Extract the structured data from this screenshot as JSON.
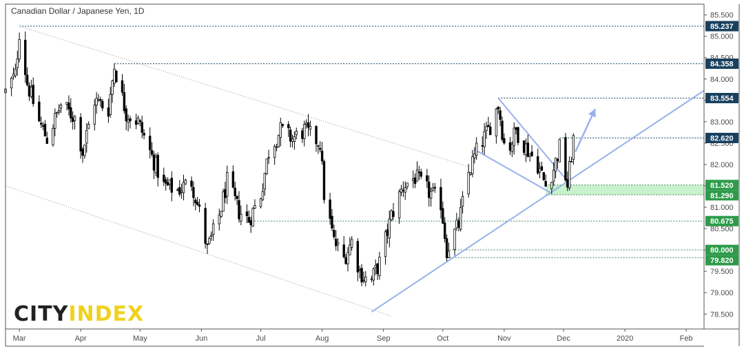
{
  "chart_data": {
    "type": "candlestick",
    "title": "Canadian Dollar / Japanese Yen, 1D",
    "xlabel": "",
    "ylabel": "",
    "ylim": [
      78.15,
      85.72
    ],
    "xlim": [
      "2019-02-22",
      "2020-02-10"
    ],
    "y_ticks": [
      "78.500",
      "79.000",
      "79.500",
      "80.000",
      "80.500",
      "81.000",
      "81.500",
      "82.000",
      "82.500",
      "83.000",
      "83.500",
      "84.000",
      "84.500",
      "85.000",
      "85.500"
    ],
    "x_ticks": [
      {
        "label": "Mar",
        "date": "2019-03-01"
      },
      {
        "label": "Apr",
        "date": "2019-04-01"
      },
      {
        "label": "May",
        "date": "2019-05-01"
      },
      {
        "label": "Jun",
        "date": "2019-06-01"
      },
      {
        "label": "Jul",
        "date": "2019-07-01"
      },
      {
        "label": "Aug",
        "date": "2019-08-01"
      },
      {
        "label": "Sep",
        "date": "2019-09-01"
      },
      {
        "label": "Oct",
        "date": "2019-10-01"
      },
      {
        "label": "Nov",
        "date": "2019-11-01"
      },
      {
        "label": "Dec",
        "date": "2019-12-01"
      },
      {
        "label": "2020",
        "date": "2020-01-01"
      },
      {
        "label": "Feb",
        "date": "2020-02-01"
      }
    ],
    "start_date": "2019-02-22",
    "close_path": [
      [
        "2019-02-22",
        83.7
      ],
      [
        "2019-02-27",
        84.1
      ],
      [
        "2019-03-01",
        85.1
      ],
      [
        "2019-03-05",
        83.9
      ],
      [
        "2019-03-11",
        83.0
      ],
      [
        "2019-03-15",
        82.6
      ],
      [
        "2019-03-22",
        83.4
      ],
      [
        "2019-03-29",
        83.1
      ],
      [
        "2019-04-02",
        82.3
      ],
      [
        "2019-04-08",
        83.5
      ],
      [
        "2019-04-15",
        83.3
      ],
      [
        "2019-04-18",
        84.3
      ],
      [
        "2019-04-24",
        83.2
      ],
      [
        "2019-04-30",
        83.0
      ],
      [
        "2019-05-06",
        82.3
      ],
      [
        "2019-05-13",
        81.5
      ],
      [
        "2019-05-20",
        81.4
      ],
      [
        "2019-05-27",
        81.6
      ],
      [
        "2019-06-01",
        80.7
      ],
      [
        "2019-06-04",
        80.0
      ],
      [
        "2019-06-10",
        80.8
      ],
      [
        "2019-06-14",
        81.6
      ],
      [
        "2019-06-20",
        80.9
      ],
      [
        "2019-06-25",
        80.7
      ],
      [
        "2019-07-01",
        81.3
      ],
      [
        "2019-07-05",
        82.3
      ],
      [
        "2019-07-11",
        82.8
      ],
      [
        "2019-07-17",
        82.6
      ],
      [
        "2019-07-23",
        82.8
      ],
      [
        "2019-07-31",
        82.5
      ],
      [
        "2019-08-02",
        81.3
      ],
      [
        "2019-08-07",
        80.2
      ],
      [
        "2019-08-12",
        79.8
      ],
      [
        "2019-08-16",
        80.2
      ],
      [
        "2019-08-20",
        79.5
      ],
      [
        "2019-08-25",
        79.2
      ],
      [
        "2019-08-26",
        79.3
      ],
      [
        "2019-08-30",
        79.7
      ],
      [
        "2019-09-05",
        80.8
      ],
      [
        "2019-09-11",
        81.5
      ],
      [
        "2019-09-17",
        81.7
      ],
      [
        "2019-09-23",
        81.4
      ],
      [
        "2019-09-30",
        81.1
      ],
      [
        "2019-10-03",
        80.0
      ],
      [
        "2019-10-09",
        80.6
      ],
      [
        "2019-10-14",
        81.8
      ],
      [
        "2019-10-18",
        82.3
      ],
      [
        "2019-10-24",
        82.8
      ],
      [
        "2019-10-29",
        83.4
      ],
      [
        "2019-11-02",
        82.2
      ],
      [
        "2019-11-07",
        82.8
      ],
      [
        "2019-11-12",
        82.4
      ],
      [
        "2019-11-18",
        82.0
      ],
      [
        "2019-11-22",
        81.5
      ],
      [
        "2019-11-26",
        81.9
      ],
      [
        "2019-11-29",
        82.4
      ],
      [
        "2019-12-03",
        81.5
      ],
      [
        "2019-12-06",
        82.6
      ]
    ],
    "levels": [
      {
        "value": 85.237,
        "label": "85.237",
        "start": "2019-03-01"
      },
      {
        "value": 84.358,
        "label": "84.358",
        "start": "2019-04-18"
      },
      {
        "value": 83.554,
        "label": "83.554",
        "start": "2019-10-29"
      },
      {
        "value": 82.62,
        "label": "82.620",
        "start": "2019-11-29"
      },
      {
        "value": 80.675,
        "label": "80.675",
        "start": "2019-06-25"
      },
      {
        "value": 80.0,
        "label": "80.000",
        "start": "2019-10-03"
      },
      {
        "value": 79.82,
        "label": "79.820",
        "start": "2019-10-03"
      }
    ],
    "support_zone": {
      "top": 81.52,
      "bottom": 81.29,
      "top_label": "81.520",
      "bottom_label": "81.290",
      "start": "2019-11-22"
    },
    "trendlines": [
      {
        "style": "dotted-gray",
        "from": [
          "2019-03-01",
          85.237
        ],
        "to": [
          "2019-10-14",
          81.95
        ]
      },
      {
        "style": "dotted-gray",
        "from": [
          "2019-02-22",
          81.5
        ],
        "to": [
          "2019-09-05",
          78.45
        ]
      },
      {
        "style": "solid-blue",
        "from": [
          "2019-08-26",
          78.55
        ],
        "to": [
          "2020-02-10",
          83.73
        ]
      },
      {
        "style": "solid-blue",
        "from": [
          "2019-10-17",
          82.35
        ],
        "to": [
          "2019-11-24",
          81.35
        ]
      },
      {
        "style": "solid-blue",
        "from": [
          "2019-10-29",
          83.554
        ],
        "to": [
          "2019-12-05",
          81.5
        ]
      }
    ],
    "projection_arrow": {
      "from": [
        "2019-12-07",
        82.3
      ],
      "to": [
        "2019-12-17",
        83.3
      ]
    },
    "colors": {
      "candle": "#000000",
      "trendline": "#98b0ec",
      "level_line": "#3e8c54",
      "zone_fill": "#bfeec5",
      "tag_blue": "#19405e",
      "tag_green": "#2d9b4a",
      "logo_dark": "#222222",
      "logo_accent": "#f0d21d"
    }
  },
  "logo": {
    "part1": "CITY",
    "part2": "INDEX"
  }
}
